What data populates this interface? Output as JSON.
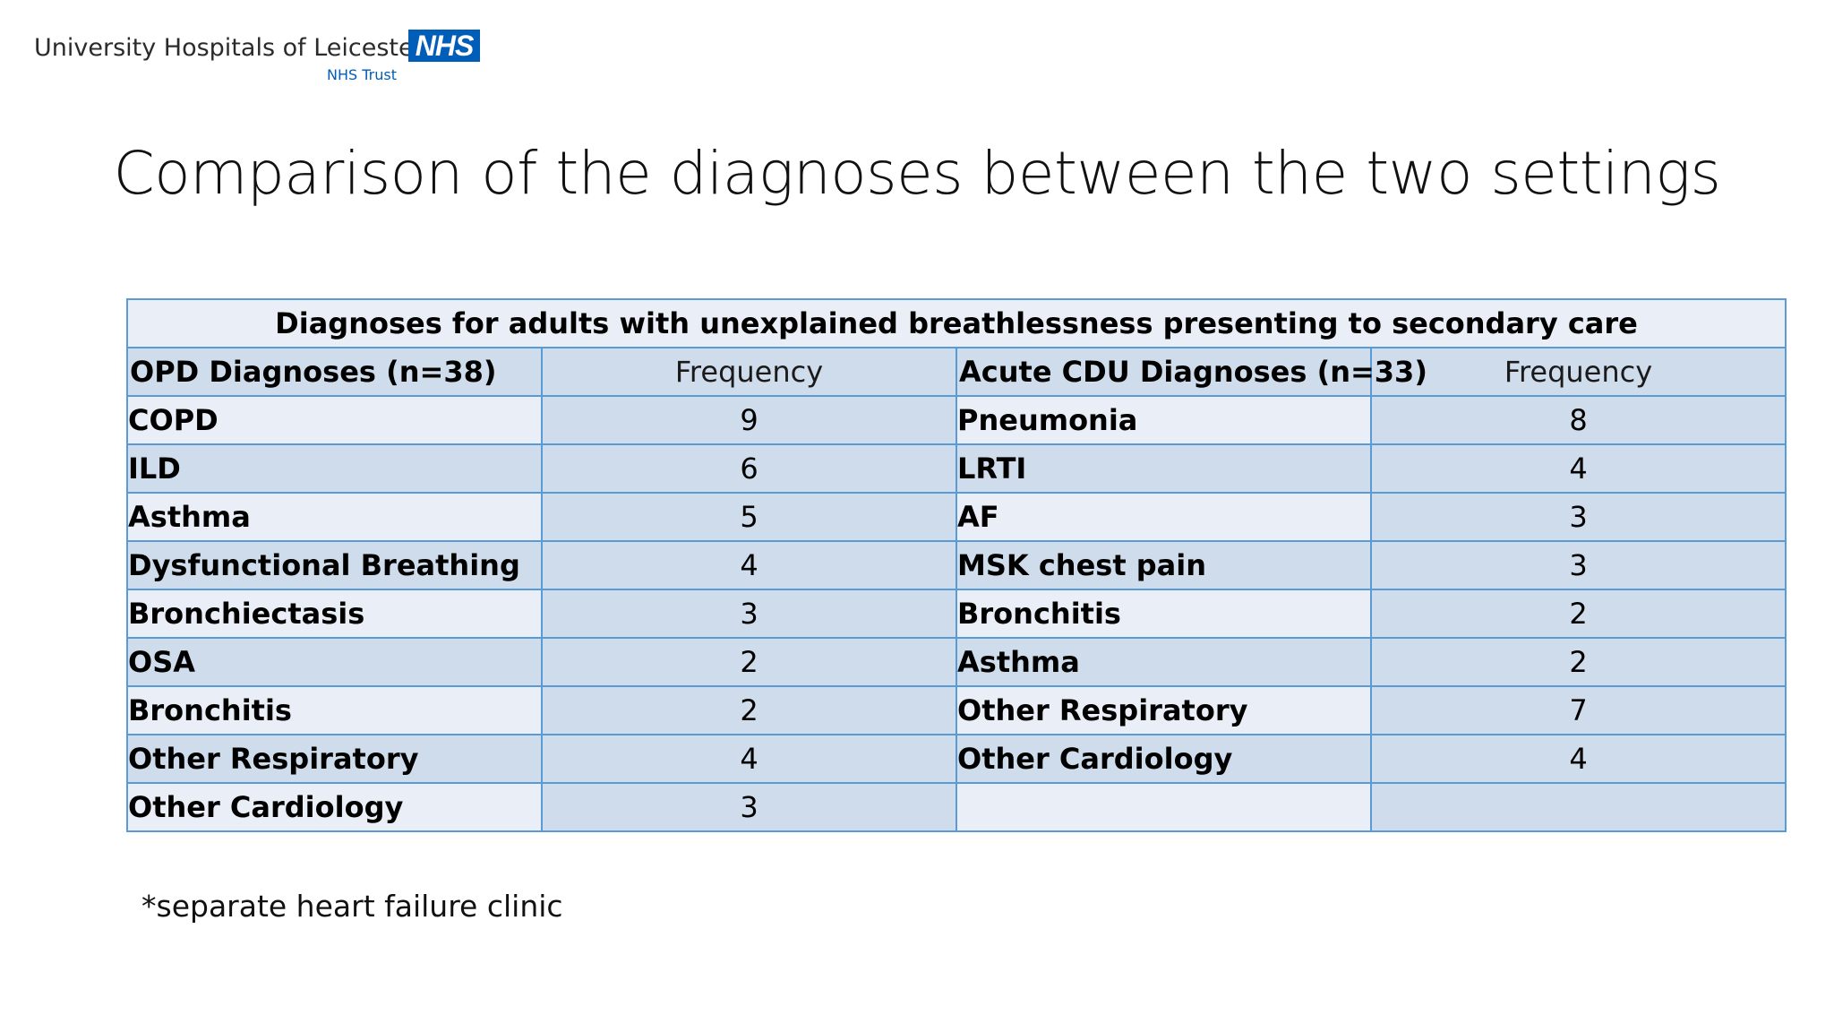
{
  "logo": {
    "org_name": "University Hospitals of Leicester",
    "badge": "NHS",
    "trust": "NHS Trust",
    "brand_color": "#005eb8"
  },
  "title": "Comparison of the diagnoses between the two settings",
  "table": {
    "caption": "Diagnoses for adults with unexplained breathlessness presenting to secondary care",
    "headers": [
      "OPD Diagnoses (n=38)",
      "Frequency",
      "Acute CDU Diagnoses (n=33)",
      "Frequency"
    ],
    "rows": [
      {
        "opd": "COPD",
        "opd_freq": "9",
        "cdu": "Pneumonia",
        "cdu_freq": "8"
      },
      {
        "opd": "ILD",
        "opd_freq": "6",
        "cdu": "LRTI",
        "cdu_freq": "4"
      },
      {
        "opd": "Asthma",
        "opd_freq": "5",
        "cdu": "AF",
        "cdu_freq": "3"
      },
      {
        "opd": "Dysfunctional Breathing",
        "opd_freq": "4",
        "cdu": "MSK chest pain",
        "cdu_freq": "3"
      },
      {
        "opd": "Bronchiectasis",
        "opd_freq": "3",
        "cdu": "Bronchitis",
        "cdu_freq": "2"
      },
      {
        "opd": "OSA",
        "opd_freq": "2",
        "cdu": "Asthma",
        "cdu_freq": "2"
      },
      {
        "opd": "Bronchitis",
        "opd_freq": "2",
        "cdu": "Other Respiratory",
        "cdu_freq": "7"
      },
      {
        "opd": "Other Respiratory",
        "opd_freq": "4",
        "cdu": "Other Cardiology",
        "cdu_freq": "4"
      },
      {
        "opd": "Other Cardiology",
        "opd_freq": "3",
        "cdu": "",
        "cdu_freq": ""
      }
    ],
    "border_color": "#5b9bd5",
    "light_fill": "#e9eef7",
    "dark_fill": "#cfdcec"
  },
  "footnote": "*separate heart failure clinic"
}
